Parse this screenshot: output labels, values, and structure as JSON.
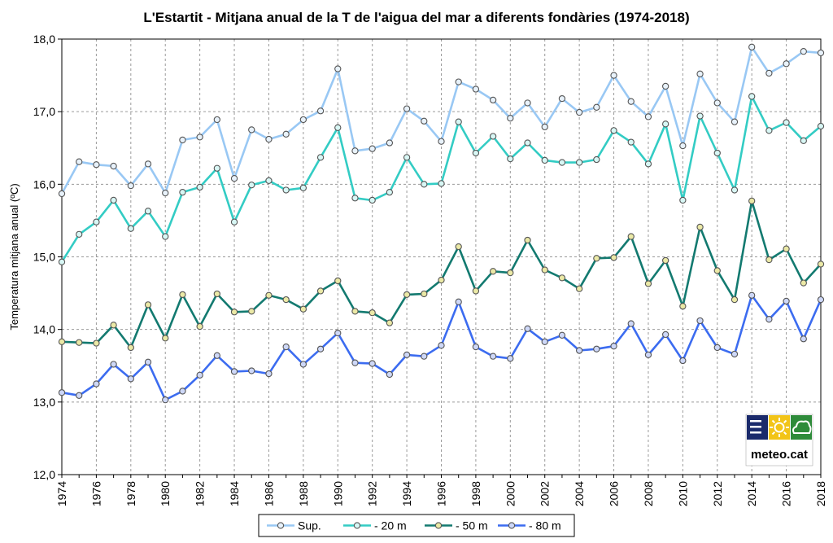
{
  "chart_data": {
    "type": "line",
    "title": "L'Estartit -  Mitjana anual de la T de l'aigua del mar a diferents fondàries (1974-2018)",
    "ylabel": "Temperatura mitjana anual (ºC)",
    "xlabel": "",
    "ylim": [
      12.0,
      18.0
    ],
    "yticks": [
      "12,0",
      "13,0",
      "14,0",
      "15,0",
      "16,0",
      "17,0",
      "18,0"
    ],
    "ytick_values": [
      12,
      13,
      14,
      15,
      16,
      17,
      18
    ],
    "xlim": [
      1974,
      2018
    ],
    "xticks": [
      "1974",
      "1976",
      "1978",
      "1980",
      "1982",
      "1984",
      "1986",
      "1988",
      "1990",
      "1992",
      "1994",
      "1996",
      "1998",
      "2000",
      "2002",
      "2004",
      "2006",
      "2008",
      "2010",
      "2012",
      "2014",
      "2016",
      "2018"
    ],
    "grid": true,
    "legend_position": "bottom",
    "x": [
      1974,
      1975,
      1976,
      1977,
      1978,
      1979,
      1980,
      1981,
      1982,
      1983,
      1984,
      1985,
      1986,
      1987,
      1988,
      1989,
      1990,
      1991,
      1992,
      1993,
      1994,
      1995,
      1996,
      1997,
      1998,
      1999,
      2000,
      2001,
      2002,
      2003,
      2004,
      2005,
      2006,
      2007,
      2008,
      2009,
      2010,
      2011,
      2012,
      2013,
      2014,
      2015,
      2016,
      2017,
      2018
    ],
    "series": [
      {
        "name": "Sup.",
        "color": "#99c8f4",
        "marker_fill": "#e8f2fb",
        "values": [
          15.87,
          16.31,
          16.27,
          16.25,
          15.98,
          16.28,
          15.88,
          16.61,
          16.65,
          16.89,
          16.08,
          16.75,
          16.62,
          16.69,
          16.89,
          17.01,
          17.59,
          16.46,
          16.49,
          16.57,
          17.04,
          16.87,
          16.59,
          17.41,
          17.31,
          17.16,
          16.91,
          17.12,
          16.79,
          17.18,
          16.99,
          17.06,
          17.5,
          17.14,
          16.93,
          17.35,
          16.53,
          17.52,
          17.12,
          16.86,
          17.89,
          17.53,
          17.66,
          17.83,
          17.81
        ]
      },
      {
        "name": "- 20 m",
        "color": "#33ccc4",
        "marker_fill": "#d8f7f5",
        "values": [
          14.93,
          15.31,
          15.48,
          15.78,
          15.39,
          15.63,
          15.28,
          15.89,
          15.96,
          16.22,
          15.48,
          15.99,
          16.05,
          15.92,
          15.95,
          16.37,
          16.78,
          15.81,
          15.78,
          15.89,
          16.37,
          16.0,
          16.01,
          16.86,
          16.43,
          16.66,
          16.35,
          16.57,
          16.33,
          16.3,
          16.3,
          16.34,
          16.74,
          16.58,
          16.28,
          16.83,
          15.78,
          16.94,
          16.43,
          15.92,
          17.21,
          16.74,
          16.85,
          16.6,
          16.8
        ]
      },
      {
        "name": "- 50 m",
        "color": "#137a70",
        "marker_fill": "#ebe9a6",
        "values": [
          13.83,
          13.82,
          13.81,
          14.06,
          13.75,
          14.34,
          13.88,
          14.48,
          14.04,
          14.49,
          14.24,
          14.25,
          14.47,
          14.41,
          14.28,
          14.53,
          14.67,
          14.25,
          14.23,
          14.09,
          14.48,
          14.49,
          14.68,
          15.14,
          14.53,
          14.8,
          14.78,
          15.23,
          14.82,
          14.71,
          14.56,
          14.98,
          14.99,
          15.28,
          14.63,
          14.95,
          14.32,
          15.41,
          14.81,
          14.41,
          15.77,
          14.96,
          15.11,
          14.64,
          14.9
        ]
      },
      {
        "name": "- 80 m",
        "color": "#3c6cf0",
        "marker_fill": "#ced8f8",
        "values": [
          13.13,
          13.09,
          13.25,
          13.52,
          13.32,
          13.55,
          13.03,
          13.15,
          13.37,
          13.64,
          13.42,
          13.43,
          13.39,
          13.76,
          13.52,
          13.73,
          13.95,
          13.54,
          13.53,
          13.38,
          13.65,
          13.63,
          13.78,
          14.38,
          13.76,
          13.63,
          13.6,
          14.01,
          13.83,
          13.92,
          13.71,
          13.73,
          13.77,
          14.08,
          13.65,
          13.93,
          13.57,
          14.12,
          13.75,
          13.66,
          14.47,
          14.14,
          14.39,
          13.87,
          14.41
        ]
      }
    ]
  },
  "logo": {
    "text": "meteo.cat",
    "colors": [
      "#1a2a6b",
      "#f2c418",
      "#2e8b3a"
    ]
  }
}
